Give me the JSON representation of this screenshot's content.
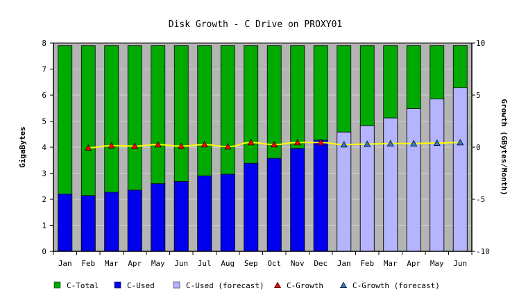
{
  "chart_data": {
    "type": "bar",
    "title": "Disk Growth - C Drive on PROXY01",
    "ylabel": "GigaBytes",
    "ylabel_right": "Growth (GBytes/Month)",
    "ylim": [
      0,
      8
    ],
    "ylim_right": [
      -10,
      10
    ],
    "yticks": [
      "0",
      "1",
      "2",
      "3",
      "4",
      "5",
      "6",
      "7",
      "8"
    ],
    "yticks_right": [
      "-10",
      "-5",
      "0",
      "5",
      "10"
    ],
    "categories": [
      "Jan",
      "Feb",
      "Mar",
      "Apr",
      "May",
      "Jun",
      "Jul",
      "Aug",
      "Sep",
      "Oct",
      "Nov",
      "Dec",
      "Jan",
      "Feb",
      "Mar",
      "Apr",
      "May",
      "Jun"
    ],
    "series": [
      {
        "name": "C-Total",
        "color": "#00aa00",
        "values": [
          7.9,
          7.9,
          7.9,
          7.9,
          7.9,
          7.9,
          7.9,
          7.9,
          7.9,
          7.9,
          7.9,
          7.9,
          7.9,
          7.9,
          7.9,
          7.9,
          7.9,
          7.9
        ]
      },
      {
        "name": "C-Used",
        "color": "#0000ee",
        "values": [
          2.2,
          2.14,
          2.27,
          2.35,
          2.6,
          2.68,
          2.9,
          2.96,
          3.38,
          3.57,
          3.95,
          4.27,
          null,
          null,
          null,
          null,
          null,
          null
        ]
      },
      {
        "name": "C-Used (forecast)",
        "color": "#b4b4ff",
        "values": [
          null,
          null,
          null,
          null,
          null,
          null,
          null,
          null,
          null,
          null,
          null,
          null,
          4.58,
          4.83,
          5.12,
          5.48,
          5.85,
          6.28
        ]
      },
      {
        "name": "C-Growth",
        "color": "#ff0000",
        "axis": "right",
        "values": [
          null,
          -0.05,
          0.15,
          0.1,
          0.25,
          0.1,
          0.25,
          0.05,
          0.45,
          0.25,
          0.45,
          0.45,
          null,
          null,
          null,
          null,
          null,
          null
        ]
      },
      {
        "name": "C-Growth (forecast)",
        "color": "#3377cc",
        "axis": "right",
        "values": [
          null,
          null,
          null,
          null,
          null,
          null,
          null,
          null,
          null,
          null,
          null,
          null,
          0.25,
          0.3,
          0.35,
          0.35,
          0.4,
          0.45
        ]
      }
    ],
    "trend_line_color": "#ffff00",
    "plot_background": "#b4b4b4",
    "grid": true,
    "legend_position": "bottom"
  }
}
